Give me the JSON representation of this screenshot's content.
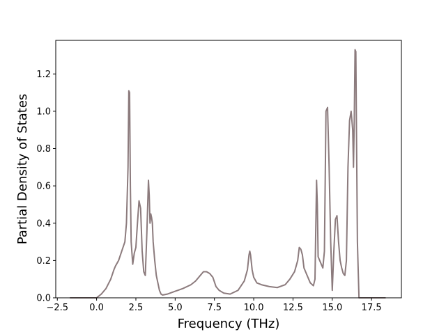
{
  "chart_data": {
    "type": "line",
    "title": "",
    "xlabel": "Frequency (THz)",
    "ylabel": "Partial Density of States",
    "xlim": [
      -2.6,
      19.4
    ],
    "ylim": [
      0.0,
      1.38
    ],
    "xticks": [
      -2.5,
      0.0,
      2.5,
      5.0,
      7.5,
      10.0,
      12.5,
      15.0,
      17.5
    ],
    "xtick_labels": [
      "−2.5",
      "0.0",
      "2.5",
      "5.0",
      "7.5",
      "10.0",
      "12.5",
      "15.0",
      "17.5"
    ],
    "yticks": [
      0.0,
      0.2,
      0.4,
      0.6,
      0.8,
      1.0,
      1.2
    ],
    "ytick_labels": [
      "0.0",
      "0.2",
      "0.4",
      "0.6",
      "0.8",
      "1.0",
      "1.2"
    ],
    "grid": false,
    "legend": "none",
    "series": [
      {
        "color": "#8c7b7d",
        "x": [
          -1.7,
          -0.5,
          0.0,
          0.3,
          0.6,
          0.9,
          1.1,
          1.2,
          1.4,
          1.6,
          1.8,
          1.9,
          2.0,
          2.05,
          2.1,
          2.15,
          2.2,
          2.3,
          2.4,
          2.5,
          2.6,
          2.7,
          2.8,
          2.9,
          3.0,
          3.1,
          3.2,
          3.3,
          3.35,
          3.4,
          3.45,
          3.5,
          3.55,
          3.6,
          3.7,
          3.8,
          3.9,
          4.0,
          4.1,
          4.2,
          4.5,
          5.0,
          5.5,
          6.0,
          6.3,
          6.6,
          6.8,
          7.0,
          7.2,
          7.4,
          7.6,
          7.8,
          8.1,
          8.5,
          9.0,
          9.4,
          9.6,
          9.7,
          9.75,
          9.8,
          9.9,
          10.0,
          10.2,
          10.5,
          11.0,
          11.5,
          12.0,
          12.3,
          12.6,
          12.8,
          12.9,
          13.0,
          13.1,
          13.2,
          13.4,
          13.6,
          13.8,
          13.9,
          14.0,
          14.05,
          14.1,
          14.2,
          14.4,
          14.5,
          14.6,
          14.7,
          14.8,
          14.9,
          15.0,
          15.1,
          15.2,
          15.3,
          15.4,
          15.5,
          15.6,
          15.7,
          15.8,
          15.9,
          16.0,
          16.1,
          16.2,
          16.3,
          16.35,
          16.4,
          16.45,
          16.5,
          16.55,
          16.6,
          16.7,
          16.75,
          16.8,
          17.0,
          18.4
        ],
        "y": [
          0.0,
          0.0,
          0.0,
          0.02,
          0.05,
          0.1,
          0.15,
          0.17,
          0.2,
          0.25,
          0.3,
          0.4,
          0.7,
          1.11,
          1.1,
          0.6,
          0.3,
          0.18,
          0.24,
          0.27,
          0.4,
          0.52,
          0.48,
          0.25,
          0.14,
          0.12,
          0.35,
          0.63,
          0.55,
          0.4,
          0.45,
          0.43,
          0.4,
          0.3,
          0.2,
          0.12,
          0.08,
          0.04,
          0.02,
          0.015,
          0.02,
          0.035,
          0.05,
          0.07,
          0.09,
          0.12,
          0.14,
          0.14,
          0.13,
          0.11,
          0.06,
          0.04,
          0.025,
          0.02,
          0.04,
          0.09,
          0.15,
          0.23,
          0.25,
          0.23,
          0.15,
          0.11,
          0.08,
          0.07,
          0.06,
          0.055,
          0.07,
          0.1,
          0.14,
          0.2,
          0.27,
          0.26,
          0.23,
          0.16,
          0.12,
          0.08,
          0.065,
          0.1,
          0.63,
          0.5,
          0.22,
          0.2,
          0.16,
          0.25,
          1.0,
          1.02,
          0.7,
          0.3,
          0.04,
          0.25,
          0.42,
          0.44,
          0.3,
          0.2,
          0.16,
          0.13,
          0.12,
          0.2,
          0.7,
          0.95,
          1.0,
          0.9,
          0.7,
          0.95,
          1.33,
          1.32,
          0.8,
          0.3,
          0.0,
          0.0,
          0.0,
          0.0,
          0.0
        ]
      }
    ]
  }
}
